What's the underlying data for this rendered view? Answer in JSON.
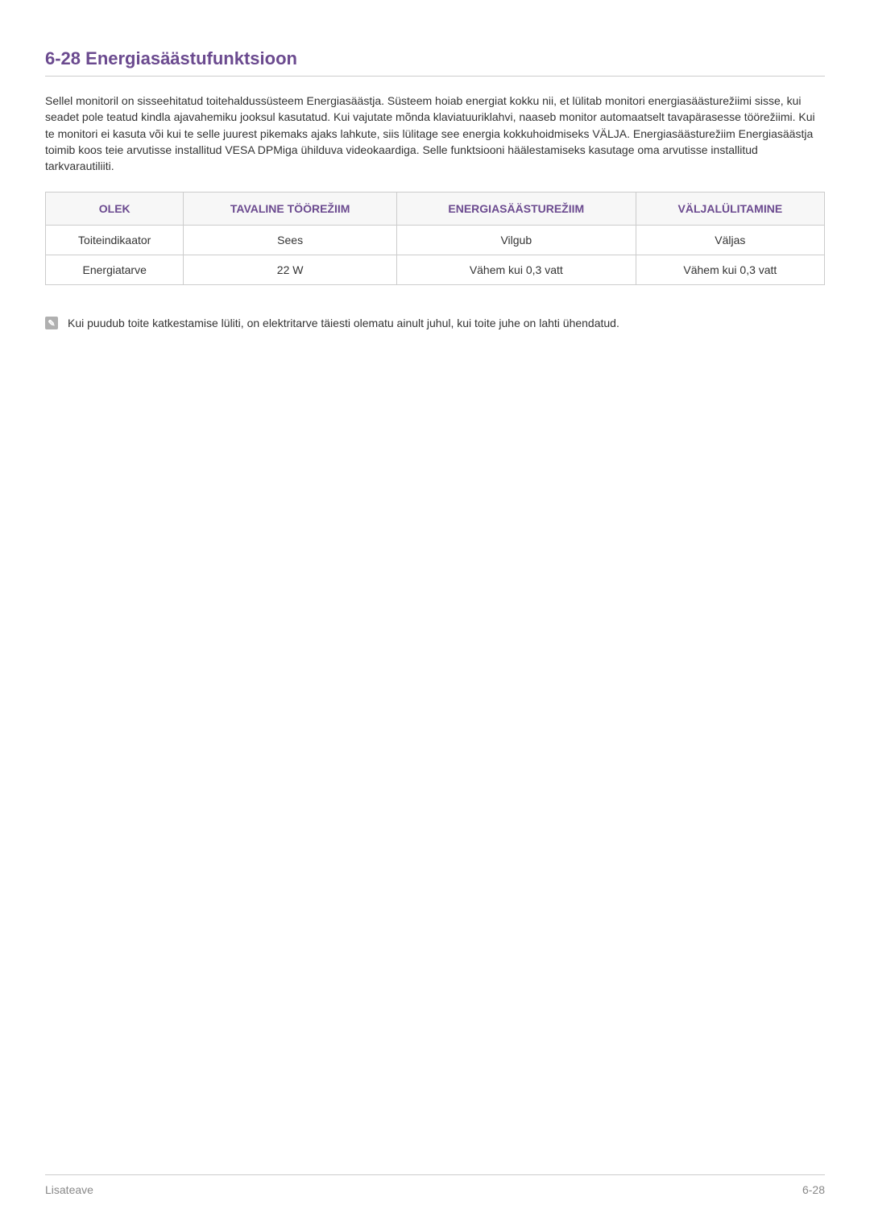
{
  "heading": "6-28   Energiasäästufunktsioon",
  "paragraph": "Sellel monitoril on sisseehitatud toitehaldussüsteem Energiasäästja. Süsteem hoiab energiat kokku nii, et lülitab monitori energiasäästurežiimi sisse, kui seadet pole teatud kindla ajavahemiku jooksul kasutatud. Kui vajutate mõnda klaviatuuriklahvi, naaseb monitor automaatselt tavapärasesse töörežiimi. Kui te monitori ei kasuta või kui te selle juurest pikemaks ajaks lahkute, siis lülitage see energia kokkuhoidmiseks VÄLJA. Energiasäästurežiim Energiasäästja toimib koos teie arvutisse installitud VESA DPMiga ühilduva videokaardiga. Selle funktsiooni häälestamiseks kasutage oma arvutisse installitud tarkvarautiliiti.",
  "table": {
    "headers": [
      "OLEK",
      "TAVALINE TÖÖREŽIIM",
      "ENERGIASÄÄSTUREŽIIM",
      "VÄLJALÜLITAMINE"
    ],
    "rows": [
      [
        "Toiteindikaator",
        "Sees",
        "Vilgub",
        "Väljas"
      ],
      [
        "Energiatarve",
        "22 W",
        "Vähem kui 0,3 vatt",
        "Vähem kui 0,3 vatt"
      ]
    ],
    "header_color": "#6b4a8f",
    "header_bg": "#f7f7f7",
    "border_color": "#cccccc",
    "cell_color": "#333333",
    "col_widths": [
      "25%",
      "25%",
      "25%",
      "25%"
    ]
  },
  "note": {
    "icon_glyph": "✎",
    "icon_bg": "#b0b0b0",
    "text": "Kui puudub toite katkestamise lüliti, on elektritarve täiesti olematu ainult juhul, kui toite juhe on lahti ühendatud."
  },
  "footer": {
    "left": "Lisateave",
    "right": "6-28"
  },
  "colors": {
    "heading": "#6b4a8f",
    "body_text": "#333333",
    "rule": "#cccccc",
    "footer_text": "#888888",
    "background": "#ffffff"
  }
}
